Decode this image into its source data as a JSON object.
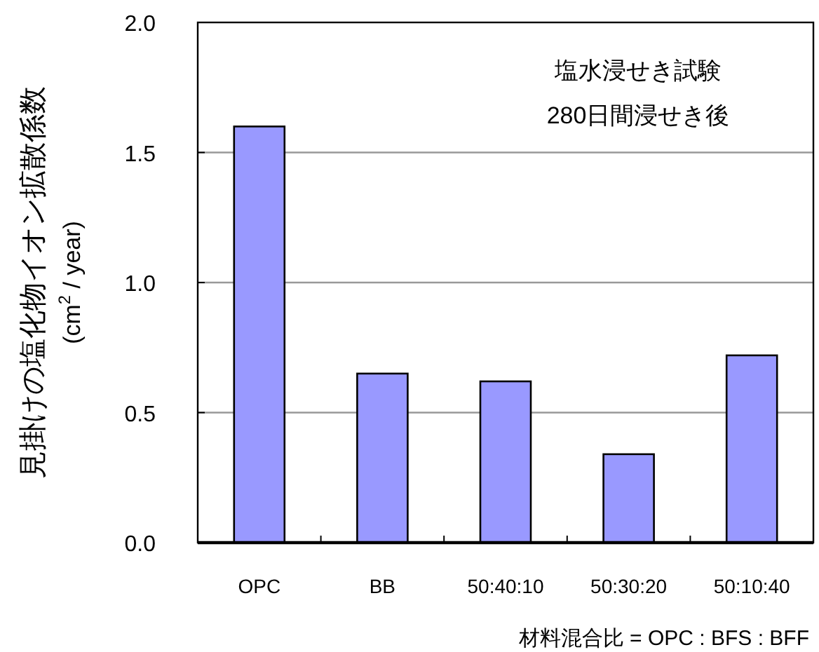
{
  "chart_data": {
    "type": "bar",
    "categories": [
      "OPC",
      "BB",
      "50:40:10",
      "50:30:20",
      "50:10:40"
    ],
    "values": [
      1.6,
      0.65,
      0.62,
      0.34,
      0.72
    ],
    "color": "#9999ff",
    "ylim": [
      0,
      2
    ],
    "yticks": [
      {
        "value": 0,
        "label": "0.0"
      },
      {
        "value": 0.5,
        "label": "0.5"
      },
      {
        "value": 1,
        "label": "1.0"
      },
      {
        "value": 1.5,
        "label": "1.5"
      },
      {
        "value": 2,
        "label": "2.0"
      }
    ],
    "grid": "y",
    "xlabel": "材料混合比 = OPC : BFS : BFF",
    "ylabel": "見掛けの塩化物イオン拡散係数\n(cm$^{2}$ / year)",
    "annotations": [
      "塩水浸せき試験",
      "280日間浸せき後"
    ]
  }
}
